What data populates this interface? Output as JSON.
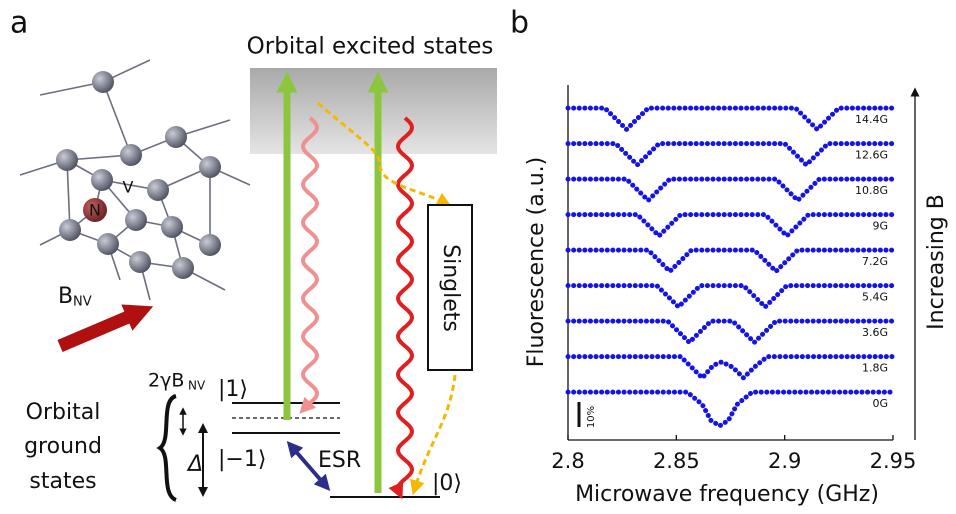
{
  "panel_labels": [
    "a",
    "b"
  ],
  "diagram": {
    "excited_title": "Orbital excited states",
    "vacancy": "V",
    "nitrogen": "N",
    "field_symbol": "B",
    "field_subscript": "NV",
    "singlets": "Singlets",
    "zeeman_prefix": "2γB",
    "zeeman_subscript": "NV",
    "level_plus1": "|1⟩",
    "level_minus1": "|−1⟩",
    "level_zero": "|0⟩",
    "splitting": "Δ",
    "esr": "ESR",
    "ground_label": [
      "Orbital",
      "ground",
      "states"
    ]
  },
  "chart_data": {
    "type": "line",
    "ylabel": "Fluorescence (a.u.)",
    "xlabel": "Microwave frequency (GHz)",
    "annotation": "Increasing B",
    "scale_bar_label": "10%",
    "xlim": [
      2.8,
      2.95
    ],
    "xticks": [
      2.8,
      2.85,
      2.9,
      2.95
    ],
    "ylim": [
      -1.35,
      8.65
    ],
    "series": [
      {
        "name": "0G",
        "color": "#1414e6",
        "x": [
          2.8,
          2.855,
          2.862,
          2.866,
          2.87,
          2.874,
          2.878,
          2.885,
          2.95
        ],
        "values": [
          0,
          0,
          -0.35,
          -0.8,
          -0.95,
          -0.8,
          -0.35,
          0,
          0
        ]
      },
      {
        "name": "1.8G",
        "color": "#1414e6",
        "x": [
          2.8,
          2.852,
          2.857,
          2.862,
          2.867,
          2.871,
          2.876,
          2.881,
          2.886,
          2.892,
          2.95
        ],
        "values": [
          1,
          1,
          0.7,
          0.4,
          0.75,
          0.85,
          0.7,
          0.4,
          0.7,
          1,
          1
        ]
      },
      {
        "name": "3.6G",
        "color": "#1414e6",
        "x": [
          2.8,
          2.846,
          2.851,
          2.856,
          2.861,
          2.866,
          2.876,
          2.881,
          2.886,
          2.891,
          2.896,
          2.95
        ],
        "values": [
          2,
          2,
          1.7,
          1.4,
          1.7,
          2,
          2,
          1.7,
          1.4,
          1.7,
          2,
          2
        ]
      },
      {
        "name": "5.4G",
        "color": "#1414e6",
        "x": [
          2.8,
          2.841,
          2.846,
          2.851,
          2.856,
          2.861,
          2.881,
          2.886,
          2.891,
          2.896,
          2.901,
          2.95
        ],
        "values": [
          3,
          3,
          2.7,
          2.4,
          2.7,
          3,
          3,
          2.7,
          2.4,
          2.7,
          3,
          3
        ]
      },
      {
        "name": "7.2G",
        "color": "#1414e6",
        "x": [
          2.8,
          2.837,
          2.842,
          2.847,
          2.852,
          2.857,
          2.886,
          2.891,
          2.896,
          2.901,
          2.906,
          2.95
        ],
        "values": [
          4,
          4,
          3.7,
          3.4,
          3.7,
          4,
          4,
          3.7,
          3.4,
          3.7,
          4,
          4
        ]
      },
      {
        "name": "9G",
        "color": "#1414e6",
        "x": [
          2.8,
          2.832,
          2.837,
          2.842,
          2.847,
          2.852,
          2.891,
          2.896,
          2.901,
          2.906,
          2.911,
          2.95
        ],
        "values": [
          5,
          5,
          4.7,
          4.4,
          4.7,
          5,
          5,
          4.7,
          4.4,
          4.7,
          5,
          5
        ]
      },
      {
        "name": "10.8G",
        "color": "#1414e6",
        "x": [
          2.8,
          2.827,
          2.832,
          2.837,
          2.842,
          2.847,
          2.896,
          2.901,
          2.906,
          2.911,
          2.916,
          2.95
        ],
        "values": [
          6,
          6,
          5.7,
          5.4,
          5.7,
          6,
          6,
          5.7,
          5.4,
          5.7,
          6,
          6
        ]
      },
      {
        "name": "12.6G",
        "color": "#1414e6",
        "x": [
          2.8,
          2.822,
          2.827,
          2.832,
          2.837,
          2.842,
          2.9,
          2.905,
          2.91,
          2.915,
          2.92,
          2.95
        ],
        "values": [
          7,
          7,
          6.7,
          6.4,
          6.7,
          7,
          7,
          6.7,
          6.4,
          6.7,
          7,
          7
        ]
      },
      {
        "name": "14.4G",
        "color": "#1414e6",
        "x": [
          2.8,
          2.817,
          2.822,
          2.827,
          2.832,
          2.837,
          2.905,
          2.91,
          2.915,
          2.92,
          2.925,
          2.95
        ],
        "values": [
          8,
          8,
          7.7,
          7.4,
          7.7,
          8,
          8,
          7.7,
          7.4,
          7.7,
          8,
          8
        ]
      }
    ]
  }
}
